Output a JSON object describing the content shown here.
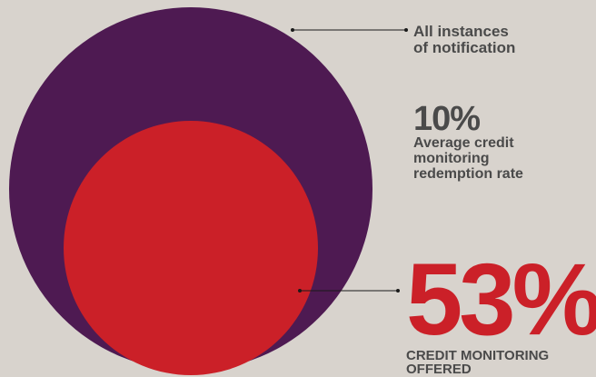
{
  "colors": {
    "background": "#d8d3cd",
    "outer_circle": "#4e1a52",
    "inner_circle": "#cb2028",
    "text": "#4a4a4a",
    "accent": "#cb2028"
  },
  "outer": {
    "label_lines": [
      "All instances",
      "of notification"
    ]
  },
  "rate": {
    "value": "10%",
    "caption_lines": [
      "Average credit",
      "monitoring",
      "redemption rate"
    ]
  },
  "offered": {
    "value": "53%",
    "caption_lines": [
      "CREDIT MONITORING",
      "OFFERED"
    ]
  }
}
